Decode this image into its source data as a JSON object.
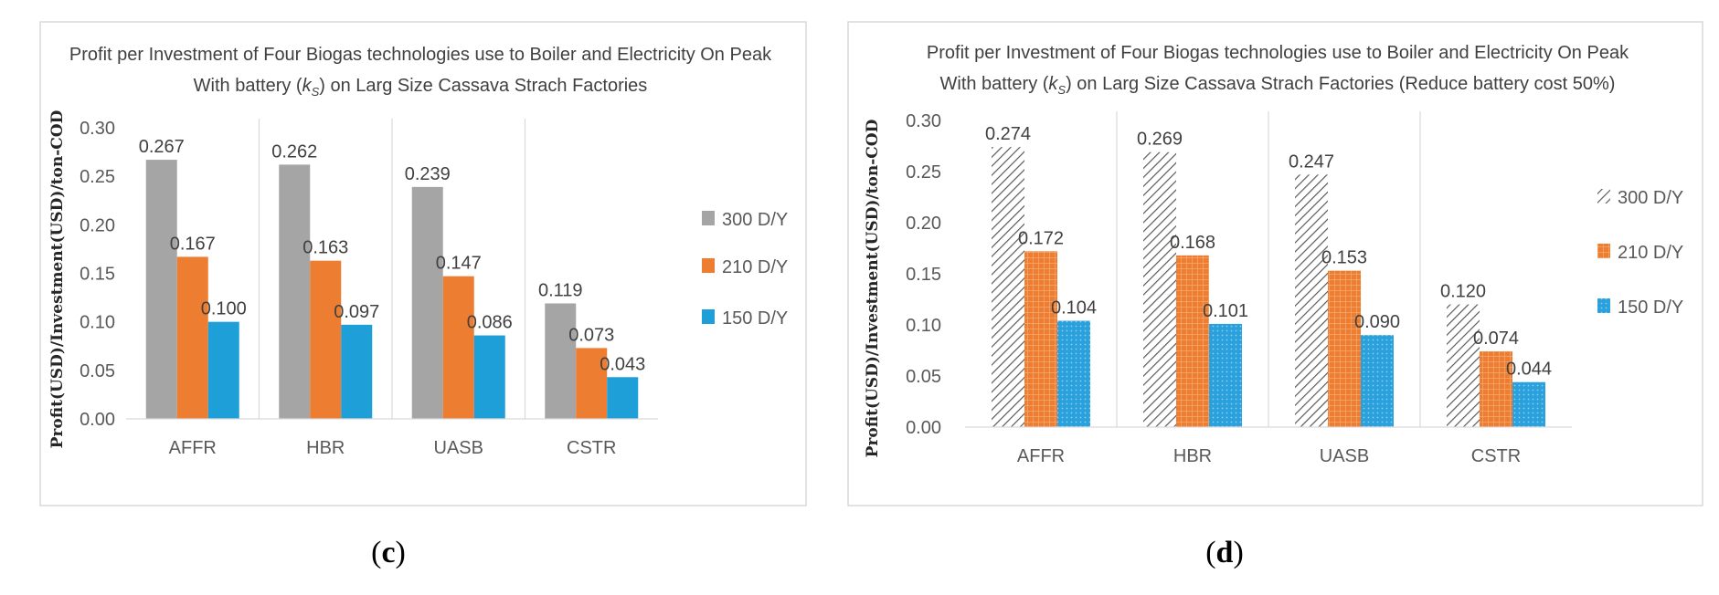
{
  "chart_data": [
    {
      "id": "c",
      "type": "bar",
      "caption_letter": "c",
      "title_line1": "Profit per Investment of Four Biogas technologies use to Boiler and Electricity On Peak",
      "title_line2_pre": "With battery (",
      "title_k": "k",
      "title_sub": "S",
      "title_line2_post": ") on Larg Size Cassava Strach Factories",
      "ylabel": "Profit(USD)/Investment(USD)/ton-COD",
      "xlabel": "",
      "ylim": [
        0,
        0.3
      ],
      "yticks": [
        "0.00",
        "0.05",
        "0.10",
        "0.15",
        "0.20",
        "0.25",
        "0.30"
      ],
      "categories": [
        "AFFR",
        "HBR",
        "UASB",
        "CSTR"
      ],
      "series": [
        {
          "name": "300 D/Y",
          "values": [
            0.267,
            0.262,
            0.239,
            0.119
          ],
          "labels": [
            "0.267",
            "0.262",
            "0.239",
            "0.119"
          ],
          "color": "#a5a5a5",
          "pattern": "solid"
        },
        {
          "name": "210 D/Y",
          "values": [
            0.167,
            0.163,
            0.147,
            0.073
          ],
          "labels": [
            "0.167",
            "0.163",
            "0.147",
            "0.073"
          ],
          "color": "#ed7d31",
          "pattern": "solid"
        },
        {
          "name": "150 D/Y",
          "values": [
            0.1,
            0.097,
            0.086,
            0.043
          ],
          "labels": [
            "0.100",
            "0.097",
            "0.086",
            "0.043"
          ],
          "color": "#1f9fd8",
          "pattern": "solid"
        }
      ],
      "grid": false,
      "legend_position": "right"
    },
    {
      "id": "d",
      "type": "bar",
      "caption_letter": "d",
      "title_line1": "Profit per Investment of Four Biogas technologies use to Boiler and Electricity On Peak",
      "title_line2_pre": "With battery (",
      "title_k": "k",
      "title_sub": "S",
      "title_line2_post": ") on Larg Size Cassava Strach Factories (Reduce battery cost 50%)",
      "ylabel": "Profit(USD)/Investment(USD)/ton-COD",
      "xlabel": "",
      "ylim": [
        0,
        0.3
      ],
      "yticks": [
        "0.00",
        "0.05",
        "0.10",
        "0.15",
        "0.20",
        "0.25",
        "0.30"
      ],
      "categories": [
        "AFFR",
        "HBR",
        "UASB",
        "CSTR"
      ],
      "series": [
        {
          "name": "300 D/Y",
          "values": [
            0.274,
            0.269,
            0.247,
            0.12
          ],
          "labels": [
            "0.274",
            "0.269",
            "0.247",
            "0.120"
          ],
          "color": "#7f7f7f",
          "pattern": "hatch"
        },
        {
          "name": "210 D/Y",
          "values": [
            0.172,
            0.168,
            0.153,
            0.074
          ],
          "labels": [
            "0.172",
            "0.168",
            "0.153",
            "0.074"
          ],
          "color": "#ed7d31",
          "pattern": "grid"
        },
        {
          "name": "150 D/Y",
          "values": [
            0.104,
            0.101,
            0.09,
            0.044
          ],
          "labels": [
            "0.104",
            "0.101",
            "0.090",
            "0.044"
          ],
          "color": "#1f9fd8",
          "pattern": "dots"
        }
      ],
      "grid": false,
      "legend_position": "right"
    }
  ]
}
